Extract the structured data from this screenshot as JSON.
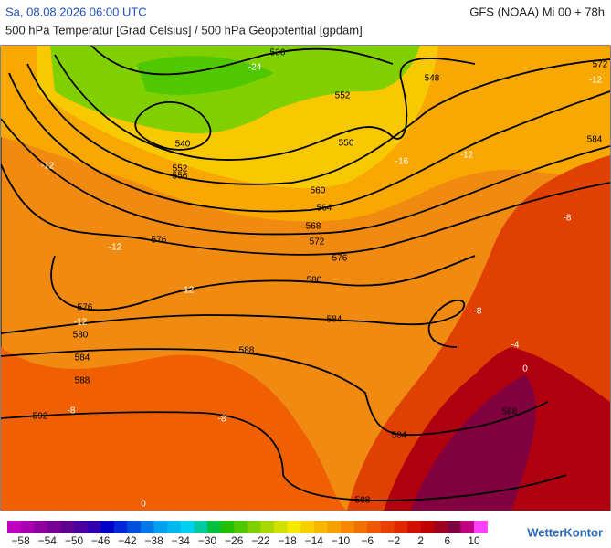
{
  "header": {
    "date": "Sa, 08.08.2026 06:00 UTC",
    "model": "GFS (NOAA) Mi 00 + 78h",
    "subtitle": "500 hPa Temperatur [Grad Celsius] / 500 hPa Geopotential [gpdam]"
  },
  "map": {
    "geopotential_labels": [
      536,
      548,
      572,
      552,
      540,
      556,
      552,
      556,
      584,
      560,
      564,
      568,
      572,
      576,
      576,
      580,
      576,
      584,
      580,
      588,
      584,
      588,
      592,
      588,
      584,
      588
    ],
    "temperature_labels": [
      -24,
      -12,
      -12,
      -12,
      -12,
      -8,
      -8,
      -8,
      -8,
      -4,
      0,
      0,
      -12,
      -12,
      -16
    ]
  },
  "colorbar": {
    "colors": [
      "#c000c0",
      "#a800b0",
      "#9000a0",
      "#780090",
      "#600090",
      "#4800a0",
      "#3000b0",
      "#0000c8",
      "#0028d8",
      "#0050e0",
      "#0078e8",
      "#00a0f0",
      "#00b8f0",
      "#00d0f0",
      "#00c8a0",
      "#00c040",
      "#20c000",
      "#50c800",
      "#80d000",
      "#a8d800",
      "#d0e000",
      "#f8e800",
      "#f8d000",
      "#f8b800",
      "#f8a000",
      "#f88800",
      "#f07000",
      "#f05800",
      "#e84000",
      "#e02800",
      "#d01000",
      "#c00000",
      "#a00020",
      "#800040",
      "#c00080",
      "#ff40ff"
    ],
    "labels": [
      "−58",
      "−54",
      "−50",
      "−46",
      "−42",
      "−38",
      "−34",
      "−30",
      "−26",
      "−22",
      "−18",
      "−14",
      "−10",
      "−6",
      "−2",
      "2",
      "6",
      "10"
    ]
  },
  "brand": "WetterKontor"
}
